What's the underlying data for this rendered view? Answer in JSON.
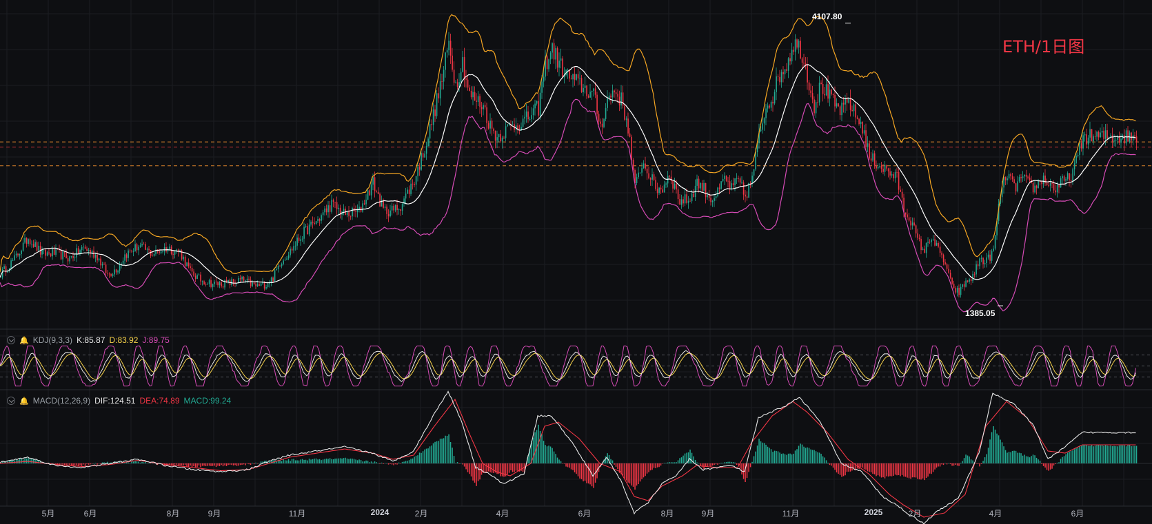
{
  "title": "ETH/1日图",
  "price": {
    "high_label": "4107.80",
    "low_label": "1385.05",
    "high_value": 4107.8,
    "low_value": 1385.05,
    "ylim": [
      1200,
      4250
    ],
    "close_points": [
      [
        0,
        1680
      ],
      [
        20,
        1820
      ],
      [
        40,
        2030
      ],
      [
        60,
        1870
      ],
      [
        80,
        1880
      ],
      [
        100,
        1830
      ],
      [
        120,
        1930
      ],
      [
        140,
        1850
      ],
      [
        155,
        1670
      ],
      [
        170,
        1740
      ],
      [
        180,
        1860
      ],
      [
        200,
        1950
      ],
      [
        220,
        1870
      ],
      [
        240,
        1930
      ],
      [
        260,
        1890
      ],
      [
        275,
        1700
      ],
      [
        290,
        1620
      ],
      [
        310,
        1580
      ],
      [
        330,
        1590
      ],
      [
        350,
        1620
      ],
      [
        370,
        1560
      ],
      [
        385,
        1580
      ],
      [
        395,
        1640
      ],
      [
        405,
        1790
      ],
      [
        420,
        1900
      ],
      [
        440,
        2080
      ],
      [
        460,
        2200
      ],
      [
        480,
        2350
      ],
      [
        500,
        2250
      ],
      [
        520,
        2280
      ],
      [
        540,
        2560
      ],
      [
        555,
        2290
      ],
      [
        570,
        2290
      ],
      [
        580,
        2340
      ],
      [
        600,
        2580
      ],
      [
        620,
        3000
      ],
      [
        640,
        3550
      ],
      [
        650,
        3900
      ],
      [
        660,
        3500
      ],
      [
        670,
        3730
      ],
      [
        680,
        3400
      ],
      [
        700,
        3300
      ],
      [
        710,
        3100
      ],
      [
        720,
        3000
      ],
      [
        740,
        3100
      ],
      [
        760,
        3150
      ],
      [
        780,
        3280
      ],
      [
        790,
        3700
      ],
      [
        800,
        3850
      ],
      [
        810,
        3700
      ],
      [
        820,
        3600
      ],
      [
        840,
        3500
      ],
      [
        860,
        3400
      ],
      [
        870,
        3100
      ],
      [
        880,
        3350
      ],
      [
        890,
        3450
      ],
      [
        900,
        3350
      ],
      [
        910,
        3100
      ],
      [
        920,
        2500
      ],
      [
        930,
        2750
      ],
      [
        940,
        2650
      ],
      [
        950,
        2500
      ],
      [
        960,
        2500
      ],
      [
        970,
        2650
      ],
      [
        985,
        2380
      ],
      [
        1000,
        2400
      ],
      [
        1010,
        2560
      ],
      [
        1020,
        2500
      ],
      [
        1030,
        2400
      ],
      [
        1040,
        2450
      ],
      [
        1050,
        2600
      ],
      [
        1060,
        2500
      ],
      [
        1070,
        2580
      ],
      [
        1080,
        2420
      ],
      [
        1090,
        2600
      ],
      [
        1100,
        3000
      ],
      [
        1110,
        3300
      ],
      [
        1120,
        3400
      ],
      [
        1130,
        3600
      ],
      [
        1140,
        3700
      ],
      [
        1150,
        3900
      ],
      [
        1160,
        3850
      ],
      [
        1170,
        3600
      ],
      [
        1180,
        3300
      ],
      [
        1190,
        3500
      ],
      [
        1200,
        3400
      ],
      [
        1210,
        3300
      ],
      [
        1220,
        3250
      ],
      [
        1230,
        3350
      ],
      [
        1240,
        3200
      ],
      [
        1250,
        3100
      ],
      [
        1260,
        2800
      ],
      [
        1270,
        2750
      ],
      [
        1280,
        2700
      ],
      [
        1290,
        2650
      ],
      [
        1300,
        2600
      ],
      [
        1310,
        2300
      ],
      [
        1320,
        2200
      ],
      [
        1330,
        2000
      ],
      [
        1340,
        1900
      ],
      [
        1350,
        2050
      ],
      [
        1360,
        1900
      ],
      [
        1370,
        1780
      ],
      [
        1380,
        1550
      ],
      [
        1390,
        1500
      ],
      [
        1400,
        1600
      ],
      [
        1410,
        1650
      ],
      [
        1420,
        1820
      ],
      [
        1430,
        1800
      ],
      [
        1440,
        1900
      ],
      [
        1450,
        2450
      ],
      [
        1460,
        2650
      ],
      [
        1470,
        2500
      ],
      [
        1480,
        2600
      ],
      [
        1490,
        2550
      ],
      [
        1500,
        2500
      ],
      [
        1510,
        2600
      ],
      [
        1520,
        2550
      ],
      [
        1530,
        2500
      ],
      [
        1540,
        2560
      ],
      [
        1550,
        2600
      ],
      [
        1560,
        2750
      ],
      [
        1570,
        3000
      ]
    ]
  },
  "price_lines": [
    2950,
    2900,
    2720
  ],
  "kdj": {
    "label": "KDJ(9,3,3)",
    "k_label": "K:85.87",
    "d_label": "D:83.92",
    "j_label": "J:89.75",
    "levels": [
      80,
      50,
      20
    ]
  },
  "macd": {
    "label": "MACD(12,26,9)",
    "dif_label": "DIF:124.51",
    "dea_label": "DEA:74.89",
    "macd_label": "MACD:99.24",
    "dif_points": [
      [
        0,
        5
      ],
      [
        40,
        30
      ],
      [
        80,
        -10
      ],
      [
        120,
        -20
      ],
      [
        160,
        0
      ],
      [
        200,
        20
      ],
      [
        240,
        -10
      ],
      [
        280,
        -30
      ],
      [
        320,
        -40
      ],
      [
        360,
        -30
      ],
      [
        390,
        10
      ],
      [
        420,
        40
      ],
      [
        460,
        60
      ],
      [
        500,
        80
      ],
      [
        540,
        50
      ],
      [
        570,
        10
      ],
      [
        600,
        60
      ],
      [
        630,
        240
      ],
      [
        650,
        350
      ],
      [
        670,
        200
      ],
      [
        690,
        -20
      ],
      [
        710,
        -50
      ],
      [
        730,
        -100
      ],
      [
        760,
        -50
      ],
      [
        780,
        230
      ],
      [
        800,
        230
      ],
      [
        830,
        100
      ],
      [
        860,
        -60
      ],
      [
        880,
        30
      ],
      [
        900,
        -80
      ],
      [
        920,
        -240
      ],
      [
        940,
        -190
      ],
      [
        960,
        -100
      ],
      [
        980,
        -60
      ],
      [
        1000,
        20
      ],
      [
        1020,
        -30
      ],
      [
        1060,
        -10
      ],
      [
        1080,
        -40
      ],
      [
        1100,
        220
      ],
      [
        1140,
        280
      ],
      [
        1160,
        320
      ],
      [
        1190,
        200
      ],
      [
        1220,
        0
      ],
      [
        1250,
        -40
      ],
      [
        1280,
        -160
      ],
      [
        1300,
        -200
      ],
      [
        1320,
        -250
      ],
      [
        1340,
        -290
      ],
      [
        1360,
        -230
      ],
      [
        1390,
        -170
      ],
      [
        1420,
        50
      ],
      [
        1440,
        340
      ],
      [
        1470,
        290
      ],
      [
        1500,
        180
      ],
      [
        1520,
        20
      ],
      [
        1545,
        80
      ],
      [
        1570,
        150
      ]
    ],
    "dea_points": [
      [
        0,
        0
      ],
      [
        40,
        10
      ],
      [
        80,
        -5
      ],
      [
        120,
        -15
      ],
      [
        160,
        -5
      ],
      [
        200,
        15
      ],
      [
        240,
        -5
      ],
      [
        280,
        -20
      ],
      [
        320,
        -35
      ],
      [
        360,
        -30
      ],
      [
        390,
        0
      ],
      [
        420,
        30
      ],
      [
        460,
        50
      ],
      [
        500,
        70
      ],
      [
        540,
        50
      ],
      [
        570,
        20
      ],
      [
        600,
        40
      ],
      [
        630,
        180
      ],
      [
        660,
        310
      ],
      [
        680,
        150
      ],
      [
        700,
        0
      ],
      [
        720,
        -40
      ],
      [
        740,
        -60
      ],
      [
        770,
        0
      ],
      [
        790,
        180
      ],
      [
        810,
        200
      ],
      [
        840,
        120
      ],
      [
        870,
        0
      ],
      [
        900,
        -40
      ],
      [
        920,
        -160
      ],
      [
        940,
        -180
      ],
      [
        960,
        -110
      ],
      [
        990,
        -60
      ],
      [
        1010,
        -10
      ],
      [
        1040,
        -20
      ],
      [
        1070,
        -20
      ],
      [
        1090,
        100
      ],
      [
        1120,
        230
      ],
      [
        1150,
        300
      ],
      [
        1170,
        250
      ],
      [
        1200,
        150
      ],
      [
        1230,
        20
      ],
      [
        1260,
        -50
      ],
      [
        1290,
        -150
      ],
      [
        1310,
        -200
      ],
      [
        1340,
        -260
      ],
      [
        1370,
        -240
      ],
      [
        1400,
        -150
      ],
      [
        1430,
        180
      ],
      [
        1460,
        300
      ],
      [
        1490,
        220
      ],
      [
        1520,
        60
      ],
      [
        1545,
        50
      ],
      [
        1570,
        90
      ]
    ]
  },
  "x_ticks": [
    {
      "label": "5月",
      "x": 70
    },
    {
      "label": "6月",
      "x": 131
    },
    {
      "label": "8月",
      "x": 251
    },
    {
      "label": "9月",
      "x": 311
    },
    {
      "label": "11月",
      "x": 431
    },
    {
      "label": "2024",
      "x": 551,
      "bold": true
    },
    {
      "label": "2月",
      "x": 611
    },
    {
      "label": "4月",
      "x": 729
    },
    {
      "label": "6月",
      "x": 848
    },
    {
      "label": "8月",
      "x": 968
    },
    {
      "label": "9月",
      "x": 1027
    },
    {
      "label": "11月",
      "x": 1147
    },
    {
      "label": "2025",
      "x": 1267,
      "bold": true
    },
    {
      "label": "2月",
      "x": 1327
    },
    {
      "label": "4月",
      "x": 1444
    },
    {
      "label": "6月",
      "x": 1563
    }
  ],
  "colors": {
    "up": "#22ab94",
    "down": "#f23645",
    "ma": "#ffffff",
    "boll_upper": "#f5a623",
    "boll_lower": "#d64bb6",
    "k": "#e6e6e6",
    "d": "#f6d24a",
    "j": "#d64bb6",
    "dif": "#e6e6e6",
    "dea": "#f23645"
  }
}
